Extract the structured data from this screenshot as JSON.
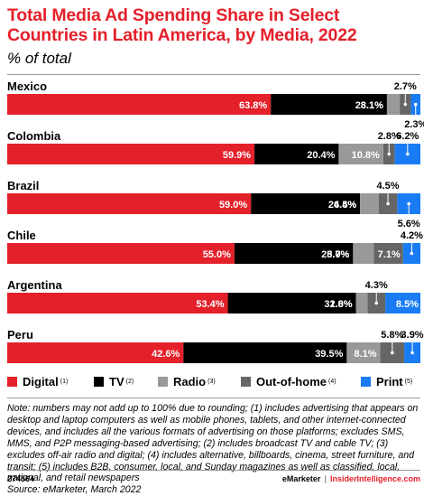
{
  "title": "Total Media Ad Spending Share in Select Countries in Latin America, by Media, 2022",
  "subtitle": "% of total",
  "colors": {
    "digital": "#e4202a",
    "tv": "#000000",
    "radio": "#999999",
    "ooh": "#666666",
    "print": "#1a7cf5",
    "title": "#e4202a"
  },
  "legend": [
    {
      "label": "Digital",
      "note": "(1)",
      "color": "#e4202a"
    },
    {
      "label": "TV",
      "note": "(2)",
      "color": "#000000"
    },
    {
      "label": "Radio",
      "note": "(3)",
      "color": "#999999"
    },
    {
      "label": "Out-of-home",
      "note": "(4)",
      "color": "#666666"
    },
    {
      "label": "Print",
      "note": "(5)",
      "color": "#1a7cf5"
    }
  ],
  "chart_data": {
    "type": "bar",
    "orientation": "horizontal",
    "stacked": true,
    "categories": [
      "Mexico",
      "Colombia",
      "Brazil",
      "Chile",
      "Argentina",
      "Peru"
    ],
    "series": [
      {
        "name": "Digital",
        "values": [
          63.8,
          59.9,
          59.0,
          55.0,
          53.4,
          42.6
        ]
      },
      {
        "name": "TV",
        "values": [
          28.1,
          20.4,
          26.4,
          28.7,
          31.0,
          39.5
        ]
      },
      {
        "name": "Radio",
        "values": [
          3.1,
          10.8,
          4.5,
          5.0,
          2.8,
          8.1
        ]
      },
      {
        "name": "Out-of-home",
        "values": [
          2.7,
          2.8,
          4.5,
          7.1,
          4.3,
          5.8
        ]
      },
      {
        "name": "Print",
        "values": [
          2.3,
          6.2,
          5.6,
          4.2,
          8.5,
          3.9
        ]
      }
    ],
    "data_labels": [
      [
        "63.8%",
        "28.1%",
        "3.1%",
        "2.7%",
        "2.3%"
      ],
      [
        "59.9%",
        "20.4%",
        "10.8%",
        "2.8%",
        "6.2%"
      ],
      [
        "59.0%",
        "26.4%",
        "4.5%",
        "4.5%",
        "5.6%"
      ],
      [
        "55.0%",
        "28.7%",
        "5.0%",
        "7.1%",
        "4.2%"
      ],
      [
        "53.4%",
        "31.0%",
        "2.8%",
        "4.3%",
        "8.5%"
      ],
      [
        "42.6%",
        "39.5%",
        "8.1%",
        "5.8%",
        "3.9%"
      ]
    ],
    "xlim": [
      0,
      100
    ],
    "legend_position": "bottom"
  },
  "note": "Note: numbers may not add up to 100% due to rounding; (1) includes advertising that appears on desktop and laptop computers as well as mobile phones, tablets, and other internet-connected devices, and includes all the various formats of advertising on those platforms; excludes SMS, MMS, and P2P messaging-based advertising; (2) includes broadcast TV and cable TV; (3) excludes off-air radio and digital; (4) includes alternative, billboards, cinema, street furniture, and transit; (5) includes B2B, consumer, local, and Sunday magazines as well as classified, local, national, and retail newspapers",
  "source": "Source: eMarketer, March 2022",
  "footer": {
    "id": "274564",
    "brand1": "eMarketer",
    "separator": "|",
    "brand2": "InsiderIntelligence.com"
  }
}
